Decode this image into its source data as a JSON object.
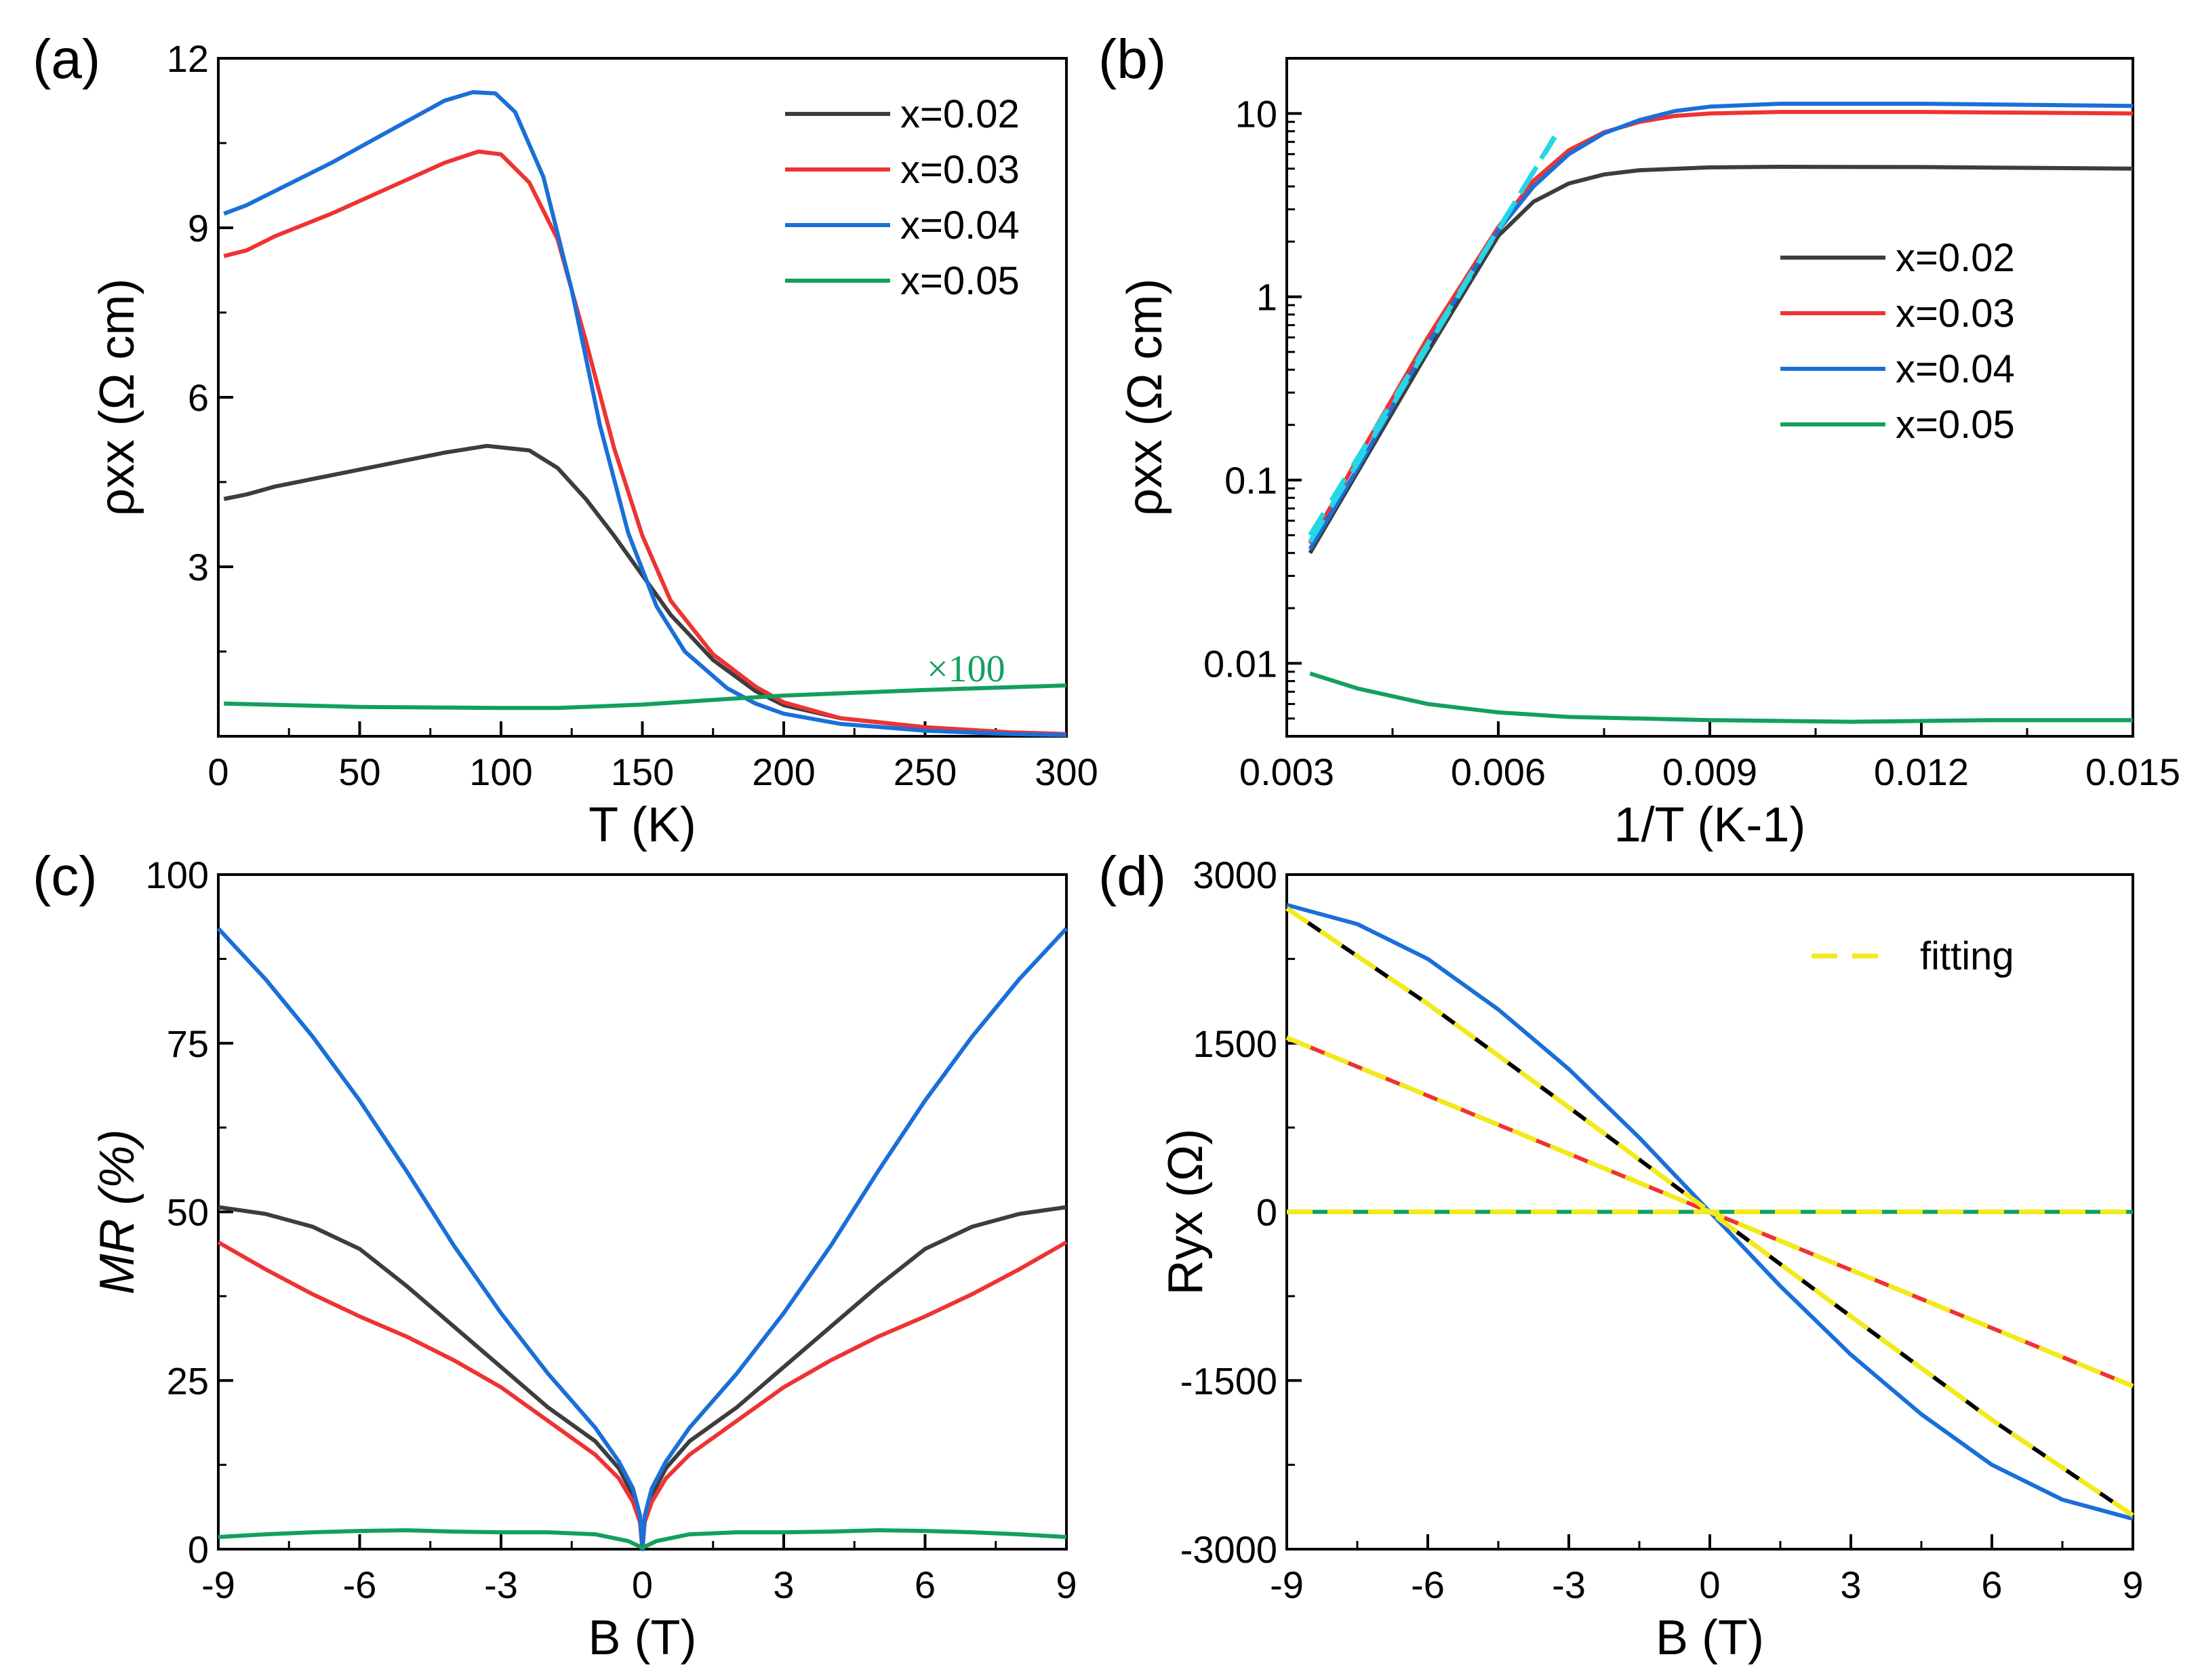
{
  "series_styles": [
    {
      "key": "x002",
      "label": "x=0.02",
      "color": "#3d3d3d"
    },
    {
      "key": "x003",
      "label": "x=0.03",
      "color": "#ee3333"
    },
    {
      "key": "x004",
      "label": "x=0.04",
      "color": "#1a6fd8"
    },
    {
      "key": "x005",
      "label": "x=0.05",
      "color": "#12a05e"
    }
  ],
  "fit_color": "#f2ea1b",
  "chart_data": [
    {
      "panel": "(a)",
      "type": "line",
      "xlabel": "T (K)",
      "ylabel": "ρxx (Ω cm)",
      "xlim": [
        0,
        300
      ],
      "ylim": [
        0,
        12
      ],
      "xticks": [
        "0",
        "50",
        "100",
        "150",
        "200",
        "250",
        "300"
      ],
      "yticks": [
        "3",
        "6",
        "9",
        "12"
      ],
      "annotation": "×100",
      "legend": [
        "x=0.02",
        "x=0.03",
        "x=0.04",
        "x=0.05"
      ],
      "series": [
        {
          "name": "x=0.02",
          "x": [
            2,
            10,
            20,
            40,
            60,
            80,
            95,
            110,
            120,
            130,
            140,
            150,
            160,
            175,
            190,
            200,
            220,
            250,
            280,
            300
          ],
          "y": [
            4.2,
            4.28,
            4.42,
            4.62,
            4.82,
            5.02,
            5.14,
            5.06,
            4.75,
            4.2,
            3.55,
            2.85,
            2.15,
            1.35,
            0.8,
            0.55,
            0.32,
            0.16,
            0.07,
            0.04
          ]
        },
        {
          "name": "x=0.03",
          "x": [
            2,
            10,
            20,
            40,
            60,
            80,
            92,
            100,
            110,
            120,
            130,
            140,
            150,
            160,
            175,
            190,
            200,
            220,
            250,
            280,
            300
          ],
          "y": [
            8.5,
            8.6,
            8.85,
            9.25,
            9.7,
            10.15,
            10.35,
            10.3,
            9.8,
            8.8,
            7.0,
            5.1,
            3.55,
            2.4,
            1.45,
            0.88,
            0.6,
            0.32,
            0.16,
            0.07,
            0.04
          ]
        },
        {
          "name": "x=0.04",
          "x": [
            2,
            10,
            20,
            40,
            60,
            80,
            90,
            98,
            105,
            115,
            125,
            135,
            145,
            155,
            165,
            180,
            190,
            200,
            220,
            250,
            280,
            300
          ],
          "y": [
            9.25,
            9.4,
            9.65,
            10.15,
            10.7,
            11.25,
            11.4,
            11.38,
            11.05,
            9.9,
            7.9,
            5.5,
            3.6,
            2.3,
            1.5,
            0.85,
            0.58,
            0.4,
            0.22,
            0.1,
            0.04,
            0.02
          ]
        },
        {
          "name": "x=0.05",
          "x": [
            2,
            50,
            100,
            120,
            150,
            180,
            200,
            250,
            300
          ],
          "y": [
            0.58,
            0.52,
            0.5,
            0.5,
            0.56,
            0.66,
            0.72,
            0.82,
            0.9
          ]
        }
      ]
    },
    {
      "panel": "(b)",
      "type": "line",
      "yscale": "log",
      "xlabel": "1/T (K-1)",
      "ylabel": "ρxx (Ω cm)",
      "xlim": [
        0.003,
        0.015
      ],
      "ylim": [
        0.004,
        20
      ],
      "xticks": [
        "0.003",
        "0.006",
        "0.009",
        "0.012",
        "0.015"
      ],
      "yticks": [
        "0.01",
        "0.1",
        "1",
        "10"
      ],
      "legend": [
        "x=0.02",
        "x=0.03",
        "x=0.04",
        "x=0.05"
      ],
      "series": [
        {
          "name": "x=0.02",
          "x": [
            0.00333,
            0.004,
            0.005,
            0.006,
            0.0065,
            0.007,
            0.0075,
            0.008,
            0.009,
            0.01,
            0.012,
            0.015
          ],
          "y": [
            0.04,
            0.11,
            0.5,
            2.15,
            3.3,
            4.15,
            4.65,
            4.9,
            5.08,
            5.12,
            5.1,
            5.0
          ]
        },
        {
          "name": "x=0.03",
          "x": [
            0.00333,
            0.004,
            0.005,
            0.006,
            0.0065,
            0.007,
            0.0075,
            0.008,
            0.0085,
            0.009,
            0.01,
            0.012,
            0.015
          ],
          "y": [
            0.045,
            0.13,
            0.6,
            2.4,
            4.3,
            6.3,
            7.9,
            9.0,
            9.7,
            10.0,
            10.2,
            10.2,
            10.0
          ]
        },
        {
          "name": "x=0.04",
          "x": [
            0.00333,
            0.004,
            0.005,
            0.006,
            0.0065,
            0.007,
            0.0075,
            0.008,
            0.0085,
            0.009,
            0.01,
            0.012,
            0.015
          ],
          "y": [
            0.042,
            0.115,
            0.55,
            2.3,
            4.0,
            6.0,
            7.8,
            9.2,
            10.3,
            10.9,
            11.3,
            11.3,
            11.0
          ]
        },
        {
          "name": "x=0.05",
          "x": [
            0.00333,
            0.004,
            0.005,
            0.006,
            0.007,
            0.008,
            0.009,
            0.011,
            0.013,
            0.015
          ],
          "y": [
            0.0088,
            0.0073,
            0.006,
            0.0054,
            0.0051,
            0.005,
            0.0049,
            0.0048,
            0.0049,
            0.0049
          ]
        }
      ],
      "fits": [
        {
          "x": [
            0.00333,
            0.0069
          ],
          "y": [
            0.046,
            8.7
          ]
        },
        {
          "x": [
            0.00333,
            0.0068
          ],
          "y": [
            0.05,
            7.4
          ]
        }
      ]
    },
    {
      "panel": "(c)",
      "type": "line",
      "xlabel": "B (T)",
      "ylabel": "MR (%)",
      "xlim": [
        -9,
        9
      ],
      "ylim": [
        0,
        100
      ],
      "xticks": [
        "-9",
        "-6",
        "-3",
        "0",
        "3",
        "6",
        "9"
      ],
      "yticks": [
        "0",
        "25",
        "50",
        "75",
        "100"
      ],
      "series": [
        {
          "name": "x=0.02",
          "x": [
            0,
            0.05,
            0.2,
            0.5,
            1,
            2,
            3,
            4,
            5,
            6,
            7,
            8,
            9
          ],
          "y": [
            0,
            4.5,
            8,
            12,
            16,
            21,
            27,
            33,
            39,
            44.5,
            47.8,
            49.7,
            50.7
          ]
        },
        {
          "name": "x=0.03",
          "x": [
            0,
            0.05,
            0.2,
            0.5,
            1,
            2,
            3,
            4,
            5,
            6,
            7,
            8,
            9
          ],
          "y": [
            0,
            4,
            7,
            10.5,
            14,
            19,
            24,
            28,
            31.5,
            34.5,
            37.8,
            41.5,
            45.5
          ]
        },
        {
          "name": "x=0.04",
          "x": [
            0,
            0.05,
            0.2,
            0.5,
            1,
            2,
            3,
            4,
            5,
            6,
            7,
            8,
            9
          ],
          "y": [
            0,
            5,
            9,
            13,
            18,
            26,
            35,
            45,
            56,
            66.5,
            76,
            84.5,
            92
          ]
        },
        {
          "name": "x=0.05",
          "x": [
            0,
            0.3,
            1,
            2,
            3,
            4,
            5,
            6,
            7,
            8,
            9
          ],
          "y": [
            0.2,
            1.2,
            2.2,
            2.5,
            2.5,
            2.6,
            2.8,
            2.7,
            2.5,
            2.2,
            1.8
          ]
        }
      ]
    },
    {
      "panel": "(d)",
      "type": "line",
      "xlabel": "B (T)",
      "ylabel": "Ryx (Ω)",
      "xlim": [
        -9,
        9
      ],
      "ylim": [
        -3000,
        3000
      ],
      "xticks": [
        "-9",
        "-6",
        "-3",
        "0",
        "3",
        "6",
        "9"
      ],
      "yticks": [
        "-3000",
        "-1500",
        "0",
        "1500",
        "3000"
      ],
      "legend": [
        "fitting"
      ],
      "series": [
        {
          "name": "black",
          "color": "#000000",
          "x": [
            -9,
            -6,
            -3,
            0,
            3,
            6,
            9
          ],
          "y": [
            2700,
            1850,
            930,
            0,
            -930,
            -1850,
            -2700
          ]
        },
        {
          "name": "x=0.03",
          "x": [
            -9,
            9
          ],
          "y": [
            1550,
            -1550
          ]
        },
        {
          "name": "x=0.04",
          "x": [
            -9,
            -7.5,
            -6,
            -4.5,
            -3,
            -1.5,
            0,
            1.5,
            3,
            4.5,
            6,
            7.5,
            9
          ],
          "y": [
            2730,
            2560,
            2250,
            1800,
            1270,
            660,
            0,
            -660,
            -1270,
            -1800,
            -2250,
            -2560,
            -2730
          ]
        },
        {
          "name": "x=0.05",
          "x": [
            -9,
            9
          ],
          "y": [
            0,
            0
          ]
        }
      ],
      "fits": [
        {
          "x": [
            -9,
            -6,
            -3,
            0,
            3,
            6,
            9
          ],
          "y": [
            2700,
            1850,
            930,
            0,
            -930,
            -1850,
            -2700
          ]
        },
        {
          "x": [
            -9,
            9
          ],
          "y": [
            1550,
            -1550
          ]
        },
        {
          "x": [
            -9,
            9
          ],
          "y": [
            0,
            0
          ]
        }
      ]
    }
  ]
}
